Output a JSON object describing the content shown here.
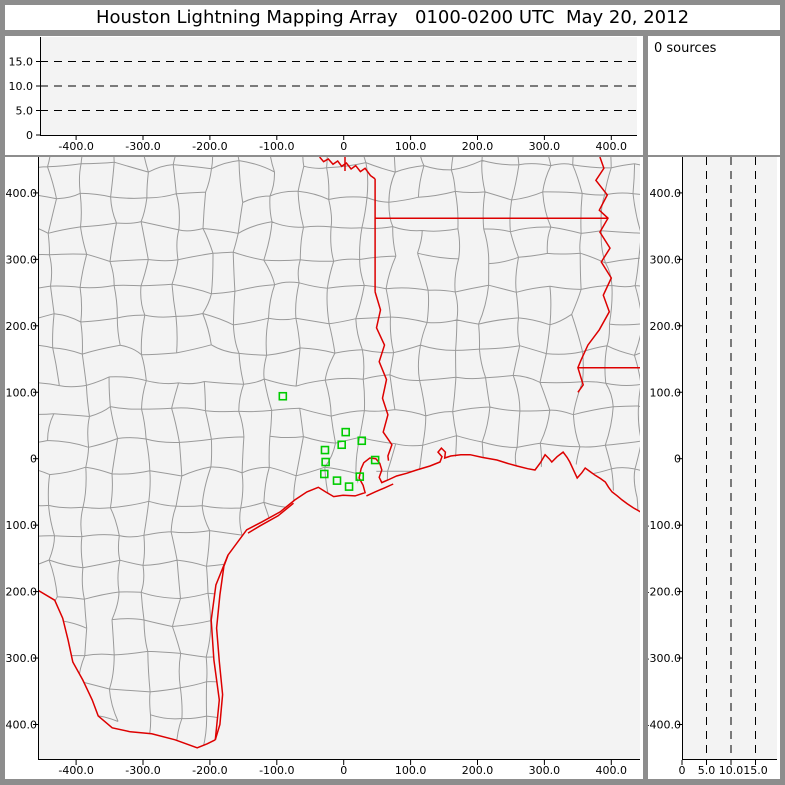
{
  "title_bar": {
    "text": "Houston Lightning Mapping Array   0100-0200 UTC  May 20, 2012"
  },
  "sources_panel": {
    "label": "0 sources"
  },
  "colors": {
    "frame": "#8d8d8d",
    "panel_bg": "#ffffff",
    "plot_bg": "#f3f3f3",
    "axis": "#000000",
    "county": "#9a9a9a",
    "state_border": "#dd0000",
    "station": "#00cc00"
  },
  "alt_ew_panel": {
    "y_tick_values": [
      0,
      5,
      10,
      15
    ],
    "y_tick_labels": [
      "0",
      "5.0",
      "10.0",
      "15.0"
    ],
    "dash_values": [
      5,
      10,
      15
    ],
    "x_tick_values": [
      -400,
      -300,
      -200,
      -100,
      0,
      100,
      200,
      300,
      400
    ],
    "x_tick_labels": [
      "-400.0",
      "-300.0",
      "-200.0",
      "-100.0",
      "0",
      "100.0",
      "200.0",
      "300.0",
      "400.0"
    ],
    "alt_range_km": [
      0,
      20
    ]
  },
  "alt_ns_panel": {
    "x_tick_values": [
      0,
      5,
      10,
      15
    ],
    "x_tick_labels": [
      "0",
      "5.0",
      "10.0",
      "15.0"
    ],
    "dash_values": [
      5,
      10,
      15
    ],
    "y_tick_values": [
      400,
      300,
      200,
      100,
      0,
      -100,
      -200,
      -300,
      -400
    ],
    "y_tick_labels": [
      "400.0",
      "300.0",
      "200.0",
      "100.0",
      "0",
      "-100.0",
      "-200.0",
      "-300.0",
      "-400.0"
    ],
    "alt_range_km": [
      0,
      20
    ]
  },
  "map_panel": {
    "x_tick_values": [
      -400,
      -300,
      -200,
      -100,
      0,
      100,
      200,
      300,
      400
    ],
    "x_tick_labels": [
      "-400.0",
      "-300.0",
      "-200.0",
      "-100.0",
      "0",
      "100.0",
      "200.0",
      "300.0",
      "400.0"
    ],
    "y_tick_values": [
      400,
      300,
      200,
      100,
      0,
      -100,
      -200,
      -300,
      -400
    ],
    "y_tick_labels": [
      "400.0",
      "300.0",
      "200.0",
      "100.0",
      "0",
      "-100.0",
      "-200.0",
      "-300.0",
      "-400.0"
    ],
    "x_range_km": [
      -457,
      443
    ],
    "y_range_km": [
      -453,
      454
    ],
    "county_grid": {
      "seed": 20120520,
      "step": 46,
      "jitter": 18,
      "skip": 0.05,
      "bow": 10,
      "extent": [
        -480,
        500
      ]
    },
    "stations": [
      [
        -91,
        94
      ],
      [
        3,
        40
      ],
      [
        27,
        27
      ],
      [
        -3,
        21
      ],
      [
        -28,
        13
      ],
      [
        47,
        -2
      ],
      [
        -27,
        -5
      ],
      [
        -29,
        -23
      ],
      [
        24,
        -27
      ],
      [
        -10,
        -33
      ],
      [
        8,
        -42
      ]
    ],
    "land_polygon": [
      [
        -480,
        490
      ],
      [
        480,
        490
      ],
      [
        480,
        -85
      ],
      [
        447,
        -82
      ],
      [
        416,
        -62
      ],
      [
        391,
        -35
      ],
      [
        361,
        -14
      ],
      [
        338,
        -5
      ],
      [
        311,
        -5
      ],
      [
        286,
        -17
      ],
      [
        229,
        -2
      ],
      [
        189,
        6
      ],
      [
        151,
        1
      ],
      [
        129,
        -11
      ],
      [
        94,
        -22
      ],
      [
        66,
        -32
      ],
      [
        53,
        -28
      ],
      [
        39,
        1
      ],
      [
        26,
        -15
      ],
      [
        17,
        -56
      ],
      [
        -15,
        -57
      ],
      [
        -38,
        -43
      ],
      [
        -73,
        -62
      ],
      [
        -95,
        -80
      ],
      [
        -122,
        -95
      ],
      [
        -145,
        -107
      ],
      [
        -173,
        -145
      ],
      [
        -191,
        -190
      ],
      [
        -198,
        -243
      ],
      [
        -194,
        -303
      ],
      [
        -186,
        -363
      ],
      [
        -192,
        -423
      ],
      [
        -219,
        -435
      ],
      [
        -252,
        -423
      ],
      [
        -287,
        -414
      ],
      [
        -319,
        -411
      ],
      [
        -346,
        -405
      ],
      [
        -367,
        -387
      ],
      [
        -376,
        -363
      ],
      [
        -390,
        -333
      ],
      [
        -405,
        -306
      ],
      [
        -412,
        -273
      ],
      [
        -420,
        -240
      ],
      [
        -432,
        -213
      ],
      [
        -457,
        -198
      ],
      [
        -480,
        -190
      ]
    ],
    "borders": [
      {
        "name": "red-river-tx-ok-border",
        "points": [
          [
            -36,
            454
          ],
          [
            -30,
            447
          ],
          [
            -23,
            451
          ],
          [
            -16,
            443
          ],
          [
            -9,
            448
          ],
          [
            -3,
            440
          ],
          [
            4,
            445
          ],
          [
            11,
            436
          ],
          [
            18,
            441
          ],
          [
            25,
            432
          ],
          [
            32,
            437
          ],
          [
            40,
            426
          ],
          [
            47,
            421
          ]
        ]
      },
      {
        "name": "ok-ar-border",
        "points": [
          [
            2,
            454
          ],
          [
            2,
            433
          ]
        ]
      },
      {
        "name": "tx-ar-la-border",
        "points": [
          [
            47,
            421
          ],
          [
            47,
            251
          ]
        ]
      },
      {
        "name": "sabine-river-tx-la-border",
        "points": [
          [
            47,
            251
          ],
          [
            55,
            224
          ],
          [
            49,
            197
          ],
          [
            61,
            171
          ],
          [
            53,
            146
          ],
          [
            64,
            119
          ],
          [
            58,
            91
          ],
          [
            66,
            66
          ],
          [
            59,
            40
          ],
          [
            72,
            21
          ],
          [
            66,
            4
          ],
          [
            67,
            -3
          ]
        ]
      },
      {
        "name": "ar-la-border",
        "points": [
          [
            47,
            362
          ],
          [
            395,
            362
          ]
        ]
      },
      {
        "name": "mississippi-river-border",
        "points": [
          [
            383,
            454
          ],
          [
            389,
            437
          ],
          [
            377,
            419
          ],
          [
            394,
            397
          ],
          [
            382,
            374
          ],
          [
            395,
            362
          ],
          [
            383,
            341
          ],
          [
            398,
            317
          ],
          [
            385,
            296
          ],
          [
            400,
            272
          ],
          [
            388,
            246
          ],
          [
            397,
            221
          ],
          [
            382,
            194
          ],
          [
            365,
            171
          ],
          [
            355,
            149
          ],
          [
            350,
            137
          ],
          [
            358,
            111
          ],
          [
            350,
            100
          ]
        ]
      },
      {
        "name": "la-ms-border",
        "points": [
          [
            350,
            137
          ],
          [
            460,
            137
          ]
        ]
      },
      {
        "name": "rio-grande-tx-mexico-border",
        "points": [
          [
            -457,
            -198
          ],
          [
            -432,
            -213
          ],
          [
            -420,
            -240
          ],
          [
            -412,
            -273
          ],
          [
            -405,
            -306
          ],
          [
            -390,
            -333
          ],
          [
            -376,
            -363
          ],
          [
            -367,
            -387
          ],
          [
            -346,
            -405
          ],
          [
            -319,
            -411
          ],
          [
            -287,
            -414
          ],
          [
            -252,
            -423
          ],
          [
            -219,
            -435
          ],
          [
            -204,
            -429
          ],
          [
            -192,
            -423
          ]
        ]
      },
      {
        "name": "gulf-coastline",
        "points": [
          [
            -192,
            -423
          ],
          [
            -186,
            -363
          ],
          [
            -194,
            -303
          ],
          [
            -198,
            -243
          ],
          [
            -191,
            -190
          ],
          [
            -173,
            -145
          ],
          [
            -145,
            -107
          ],
          [
            -122,
            -95
          ],
          [
            -95,
            -80
          ],
          [
            -73,
            -62
          ],
          [
            -55,
            -50
          ],
          [
            -38,
            -43
          ],
          [
            -27,
            -50
          ],
          [
            -15,
            -57
          ],
          [
            -1,
            -55
          ],
          [
            17,
            -56
          ],
          [
            32,
            -51
          ],
          [
            29,
            -40
          ],
          [
            23,
            -29
          ],
          [
            26,
            -15
          ],
          [
            30,
            -6
          ],
          [
            39,
            1
          ],
          [
            48,
            0
          ],
          [
            54,
            -7
          ],
          [
            57,
            -17
          ],
          [
            53,
            -28
          ],
          [
            57,
            -36
          ],
          [
            66,
            -32
          ],
          [
            79,
            -26
          ],
          [
            94,
            -22
          ],
          [
            109,
            -17
          ],
          [
            129,
            -11
          ],
          [
            144,
            -5
          ],
          [
            147,
            3
          ],
          [
            141,
            10
          ],
          [
            146,
            16
          ],
          [
            152,
            10
          ],
          [
            151,
            1
          ],
          [
            160,
            4
          ],
          [
            175,
            6
          ],
          [
            189,
            6
          ],
          [
            207,
            2
          ],
          [
            229,
            -2
          ],
          [
            245,
            -7
          ],
          [
            259,
            -11
          ],
          [
            275,
            -15
          ],
          [
            286,
            -17
          ],
          [
            294,
            -6
          ],
          [
            301,
            6
          ],
          [
            307,
            0
          ],
          [
            311,
            -5
          ],
          [
            319,
            3
          ],
          [
            328,
            10
          ],
          [
            334,
            2
          ],
          [
            338,
            -5
          ],
          [
            344,
            -18
          ],
          [
            349,
            -29
          ],
          [
            356,
            -21
          ],
          [
            361,
            -14
          ],
          [
            369,
            -20
          ],
          [
            376,
            -25
          ],
          [
            384,
            -30
          ],
          [
            391,
            -35
          ],
          [
            396,
            -43
          ],
          [
            401,
            -50
          ],
          [
            409,
            -56
          ],
          [
            416,
            -62
          ],
          [
            424,
            -68
          ],
          [
            433,
            -74
          ],
          [
            440,
            -78
          ],
          [
            447,
            -82
          ]
        ]
      },
      {
        "name": "padre-island",
        "points": [
          [
            -192,
            -423
          ],
          [
            -185,
            -400
          ],
          [
            -181,
            -355
          ],
          [
            -186,
            -305
          ],
          [
            -190,
            -255
          ],
          [
            -185,
            -205
          ],
          [
            -179,
            -162
          ],
          [
            -173,
            -145
          ]
        ]
      },
      {
        "name": "matagorda-island",
        "points": [
          [
            -143,
            -112
          ],
          [
            -125,
            -101
          ],
          [
            -98,
            -86
          ],
          [
            -75,
            -67
          ]
        ]
      },
      {
        "name": "galveston-island",
        "points": [
          [
            34,
            -56
          ],
          [
            47,
            -50
          ],
          [
            61,
            -44
          ],
          [
            74,
            -38
          ]
        ]
      }
    ]
  }
}
